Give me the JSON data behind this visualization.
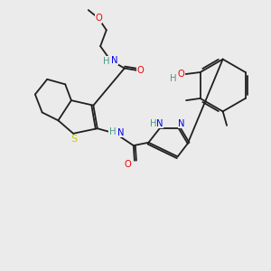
{
  "background_color": "#ebebeb",
  "atom_colors": {
    "C": "#202020",
    "N": "#0000ee",
    "O": "#ee0000",
    "S": "#cccc00",
    "H": "#4a9a8a"
  },
  "bond_color": "#202020",
  "lw": 1.3,
  "fs": 7.2
}
